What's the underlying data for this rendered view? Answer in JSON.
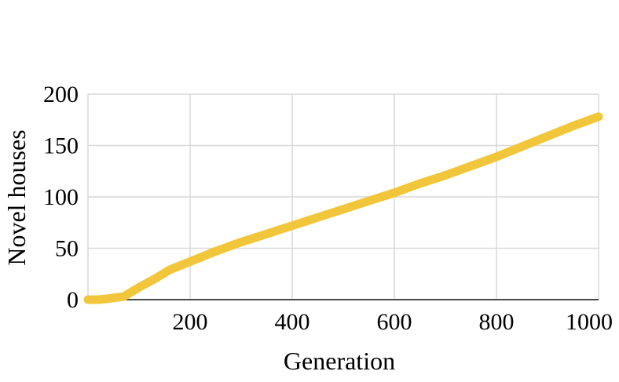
{
  "chart_data": {
    "type": "line",
    "title": "",
    "xlabel": "Generation",
    "ylabel": "Novel houses",
    "xlim": [
      0,
      1000
    ],
    "ylim": [
      0,
      200
    ],
    "grid": true,
    "x_ticks": [
      {
        "value": 200,
        "label": "200"
      },
      {
        "value": 400,
        "label": "400"
      },
      {
        "value": 600,
        "label": "600"
      },
      {
        "value": 800,
        "label": "800"
      },
      {
        "value": 1000,
        "label": "1000"
      }
    ],
    "y_ticks": [
      {
        "value": 0,
        "label": "0"
      },
      {
        "value": 50,
        "label": "50"
      },
      {
        "value": 100,
        "label": "100"
      },
      {
        "value": 150,
        "label": "150"
      },
      {
        "value": 200,
        "label": "200"
      }
    ],
    "series": [
      {
        "color": "#F2C63A",
        "x": [
          0,
          20,
          40,
          70,
          100,
          130,
          160,
          200,
          250,
          300,
          350,
          400,
          450,
          500,
          550,
          600,
          650,
          700,
          750,
          800,
          850,
          900,
          950,
          1000
        ],
        "y": [
          0,
          0,
          1,
          3,
          12,
          20,
          29,
          37,
          47,
          56,
          64,
          72,
          80,
          88,
          96,
          104,
          113,
          121,
          130,
          139,
          149,
          159,
          169,
          178
        ]
      }
    ]
  }
}
